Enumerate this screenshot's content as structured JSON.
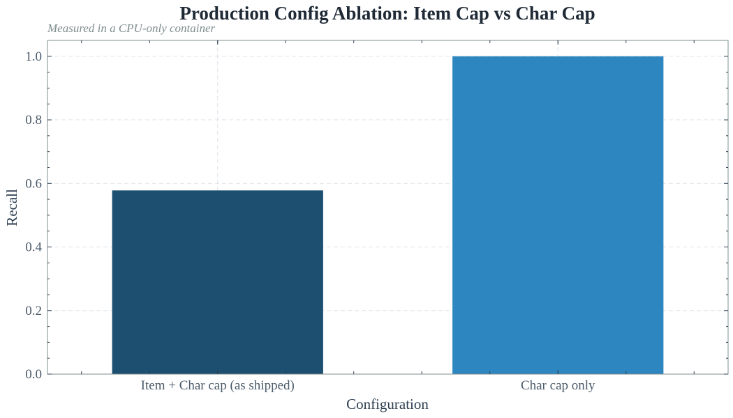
{
  "chart_data": {
    "type": "bar",
    "title": "Production Config Ablation: Item Cap vs Char Cap",
    "subtitle": "Measured in a CPU-only container",
    "xlabel": "Configuration",
    "ylabel": "Recall",
    "categories": [
      "Item + Char cap (as shipped)",
      "Char cap only"
    ],
    "values": [
      0.578,
      1.0
    ],
    "colors": [
      "#1c4f70",
      "#2e86c1"
    ],
    "ylim": [
      0,
      1.05
    ],
    "yticks": [
      "0.0",
      "0.2",
      "0.4",
      "0.6",
      "0.8",
      "1.0"
    ],
    "grid": true,
    "legend": "none"
  }
}
